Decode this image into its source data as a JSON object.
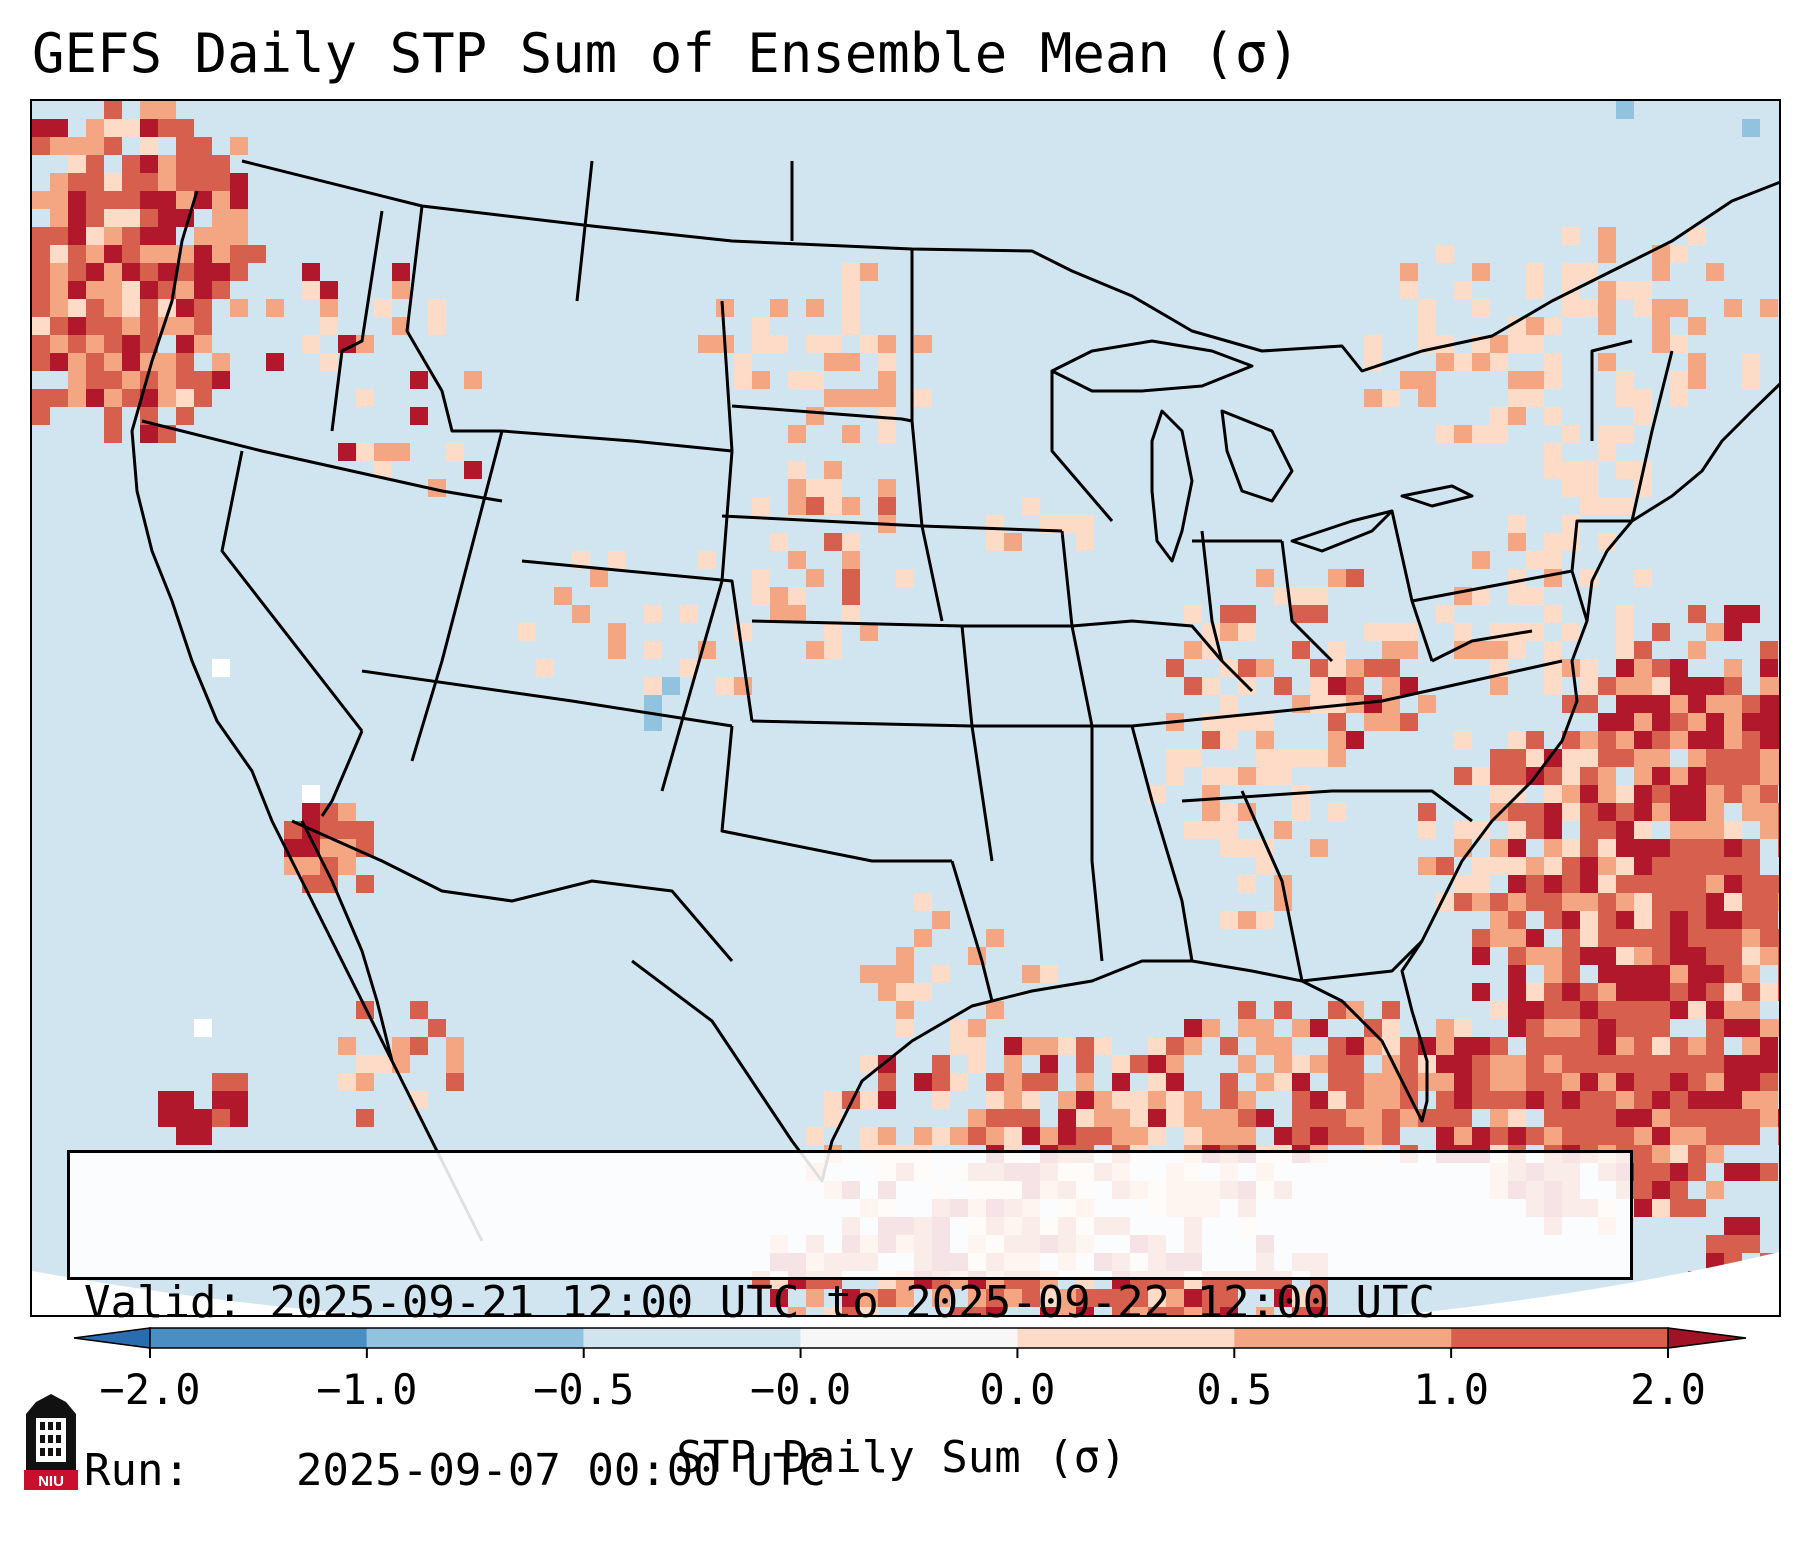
{
  "title": "GEFS Daily STP Sum of Ensemble Mean (σ)",
  "info_box": {
    "valid_label": "Valid:",
    "valid_value": "2025-09-21 12:00 UTC to 2025-09-22 12:00 UTC",
    "run_label": "Run:",
    "run_value": "2025-09-07 00:00 UTC"
  },
  "colorbar": {
    "label": "STP Daily Sum (σ)",
    "ticks": [
      "−2.0",
      "−1.0",
      "−0.5",
      "−0.0",
      "0.0",
      "0.5",
      "1.0",
      "2.0"
    ],
    "colors": [
      "#4a8fc4",
      "#92c3de",
      "#d1e5f0",
      "#f7f7f7",
      "#fddbc7",
      "#f4a582",
      "#d6604d",
      "#b2182b"
    ],
    "extend_low_color": "#2a6cb0",
    "extend_high_color": "#a11225"
  },
  "map": {
    "background_color": "#d1e5f0",
    "border_color": "#000000"
  },
  "logo": {
    "text": "NIU",
    "icon": "university-tower-icon"
  }
}
